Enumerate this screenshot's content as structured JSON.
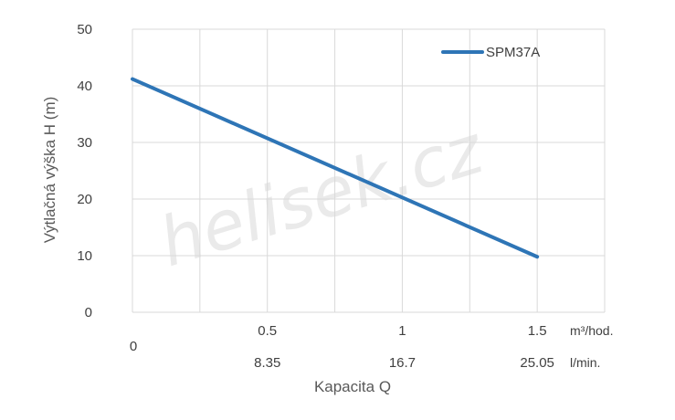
{
  "chart_data": {
    "type": "line",
    "xlabel": "Kapacita Q",
    "ylabel": "Výtlačná výška H (m)",
    "xlim": [
      0,
      1.75
    ],
    "ylim": [
      0,
      50
    ],
    "yticks": [
      0,
      10,
      20,
      30,
      40,
      50
    ],
    "x_ticks_primary": {
      "unit": "m³/hod.",
      "values": [
        0.5,
        1,
        1.5
      ],
      "labels": [
        "0.5",
        "1",
        "1.5"
      ]
    },
    "x_ticks_secondary": {
      "unit": "l/min.",
      "values": [
        0.5,
        1,
        1.5
      ],
      "labels": [
        "8.35",
        "16.7",
        "25.05"
      ]
    },
    "origin_label": "0",
    "grid": true,
    "legend_position": "top-right",
    "series": [
      {
        "name": "SPM37A",
        "color": "#2e75b6",
        "x": [
          0,
          1.5
        ],
        "y": [
          41.2,
          9.8
        ]
      }
    ],
    "watermark": "helisek.cz"
  }
}
